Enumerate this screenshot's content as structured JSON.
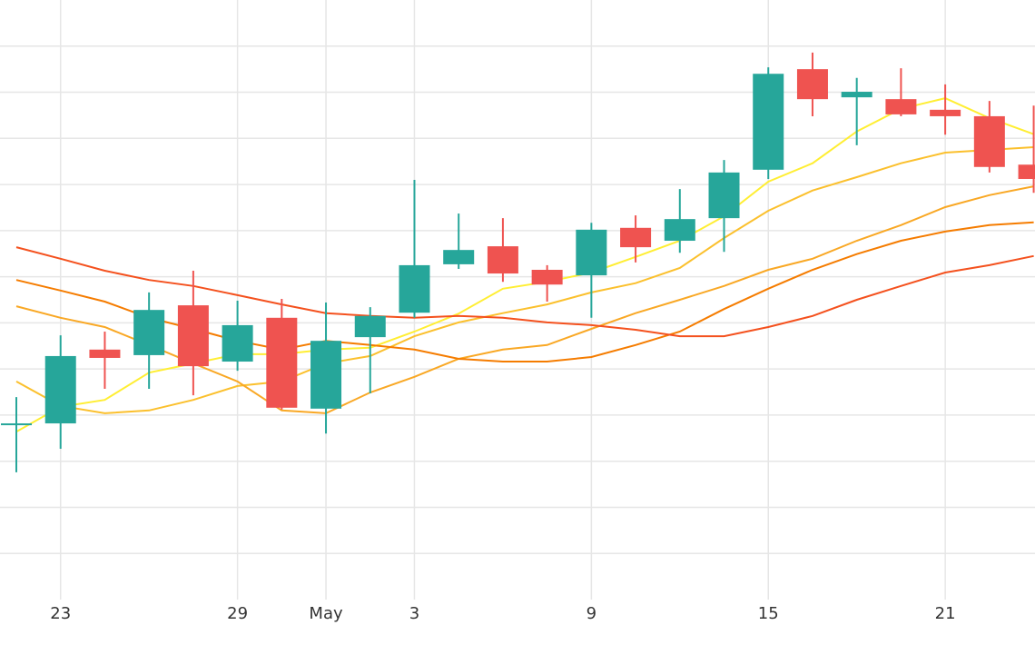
{
  "chart_data": {
    "type": "candlestick",
    "categories": [
      null,
      "23",
      null,
      null,
      null,
      "29",
      null,
      "May",
      null,
      "3",
      null,
      null,
      null,
      "9",
      null,
      null,
      null,
      "15",
      null,
      null,
      null,
      "21",
      null,
      null
    ],
    "open": [
      3.82,
      3.82,
      5.42,
      5.3,
      6.38,
      5.16,
      6.11,
      4.14,
      5.69,
      6.22,
      7.27,
      7.66,
      7.15,
      7.03,
      8.06,
      7.78,
      8.27,
      9.32,
      11.5,
      10.89,
      10.85,
      10.62,
      10.48,
      9.43
    ],
    "high": [
      4.39,
      5.73,
      5.81,
      6.66,
      7.13,
      6.48,
      6.52,
      6.44,
      6.34,
      9.1,
      8.37,
      8.27,
      7.25,
      8.17,
      8.33,
      8.9,
      9.53,
      11.54,
      11.86,
      11.31,
      11.52,
      11.17,
      10.81,
      10.71
    ],
    "low": [
      2.76,
      3.27,
      4.57,
      4.57,
      4.43,
      4.96,
      4.12,
      3.6,
      4.47,
      6.11,
      7.17,
      6.89,
      6.46,
      6.11,
      7.31,
      7.52,
      7.54,
      9.12,
      10.48,
      9.85,
      10.48,
      10.08,
      9.26,
      8.82
    ],
    "close": [
      3.82,
      5.28,
      5.24,
      6.28,
      5.06,
      5.95,
      4.16,
      5.61,
      6.15,
      7.25,
      7.58,
      7.07,
      6.83,
      8.02,
      7.64,
      8.25,
      9.26,
      11.4,
      10.85,
      11.01,
      10.52,
      10.48,
      9.38,
      9.12
    ],
    "up_color": "#26a69a",
    "down_color": "#ef5350",
    "series": [
      {
        "color": "#ffee33",
        "values": [
          3.64,
          4.18,
          4.33,
          4.92,
          5.12,
          5.32,
          5.32,
          5.42,
          5.46,
          5.81,
          6.2,
          6.74,
          6.89,
          7.09,
          7.43,
          7.78,
          8.31,
          9.06,
          9.46,
          10.15,
          10.64,
          10.87,
          10.44,
          10.09
        ]
      },
      {
        "color": "#fbc02d",
        "values": [
          4.73,
          4.2,
          4.04,
          4.1,
          4.33,
          4.63,
          4.73,
          5.12,
          5.28,
          5.71,
          6.01,
          6.21,
          6.4,
          6.66,
          6.86,
          7.19,
          7.84,
          8.43,
          8.87,
          9.16,
          9.46,
          9.69,
          9.75,
          9.81
        ]
      },
      {
        "color": "#f9a825",
        "values": [
          6.36,
          6.11,
          5.91,
          5.52,
          5.12,
          4.73,
          4.1,
          4.04,
          4.49,
          4.83,
          5.22,
          5.42,
          5.52,
          5.87,
          6.21,
          6.5,
          6.8,
          7.15,
          7.39,
          7.78,
          8.12,
          8.51,
          8.77,
          8.96
        ]
      },
      {
        "color": "#f57c00",
        "values": [
          6.93,
          6.7,
          6.46,
          6.11,
          5.87,
          5.61,
          5.42,
          5.61,
          5.52,
          5.42,
          5.22,
          5.16,
          5.16,
          5.26,
          5.52,
          5.81,
          6.3,
          6.74,
          7.15,
          7.49,
          7.78,
          7.98,
          8.12,
          8.18
        ]
      },
      {
        "color": "#f4511e",
        "values": [
          7.64,
          7.39,
          7.13,
          6.93,
          6.8,
          6.6,
          6.4,
          6.21,
          6.15,
          6.11,
          6.15,
          6.11,
          6.01,
          5.95,
          5.85,
          5.71,
          5.71,
          5.91,
          6.15,
          6.5,
          6.8,
          7.09,
          7.25,
          7.45
        ]
      }
    ],
    "ylim": [
      0,
      13
    ],
    "yticks": [
      1,
      2,
      3,
      4,
      5,
      6,
      7,
      8,
      9,
      10,
      11,
      12
    ],
    "grid": true
  }
}
